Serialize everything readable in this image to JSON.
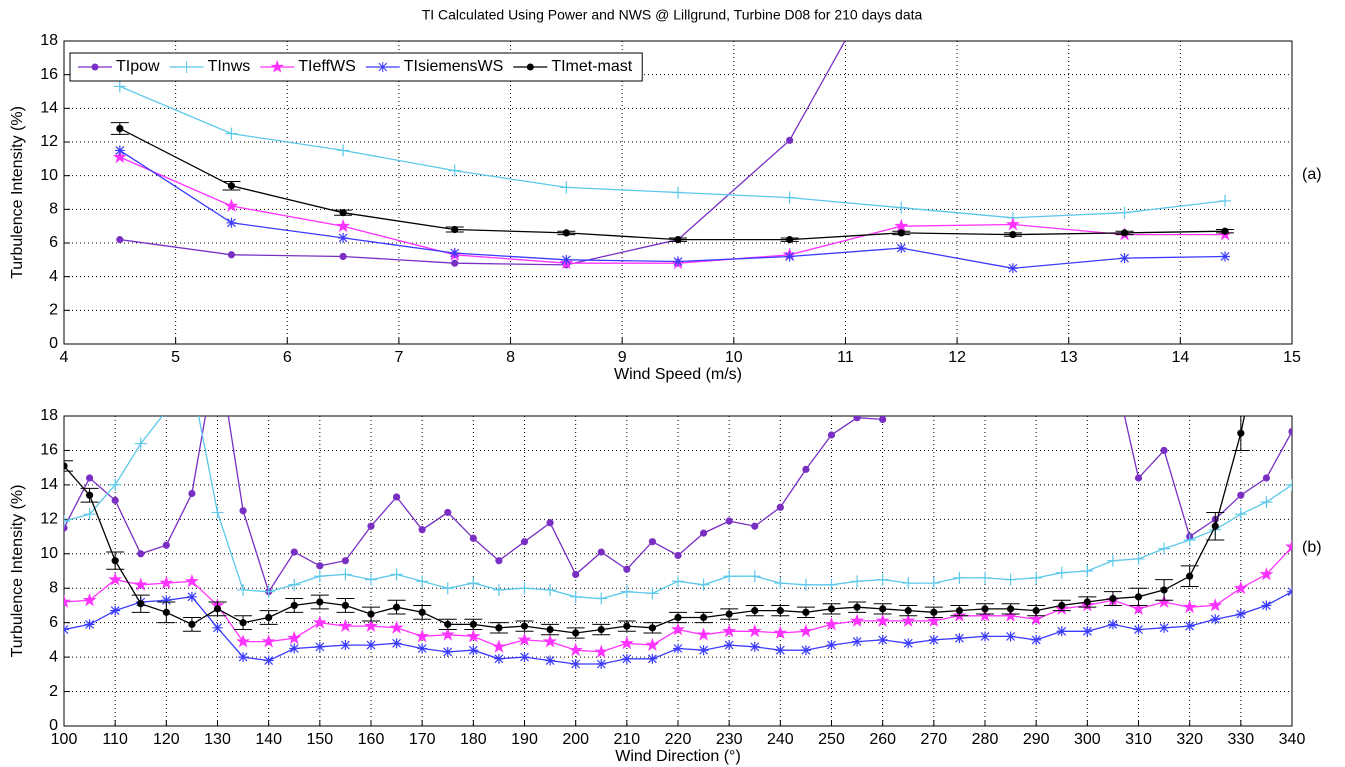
{
  "chart_data": [
    {
      "type": "line",
      "title": "TI Calculated Using Power and NWS @ Lillgrund, Turbine D08 for 210 days data",
      "annotation": "(a)",
      "x_label": "Wind Speed (m/s)",
      "y_label": "Turbulence Intensity (%)",
      "xlim": [
        4,
        15
      ],
      "xticks": [
        4,
        5,
        6,
        7,
        8,
        9,
        10,
        11,
        12,
        13,
        14,
        15
      ],
      "ylim": [
        0,
        18
      ],
      "yticks": [
        0,
        2,
        4,
        6,
        8,
        10,
        12,
        14,
        16,
        18
      ],
      "grid": true,
      "legend": "upper left",
      "x": [
        4.5,
        5.5,
        6.5,
        7.5,
        8.5,
        9.5,
        10.5,
        11.5,
        12.5,
        13.5,
        14.4
      ],
      "series": [
        {
          "name": "TIpow",
          "color": "#7a2fc4",
          "marker": "o",
          "values": [
            6.2,
            5.3,
            5.2,
            4.8,
            4.7,
            6.2,
            12.1,
            24,
            null,
            null,
            null
          ]
        },
        {
          "name": "TInws",
          "color": "#5cc8ea",
          "marker": "+",
          "values": [
            15.3,
            12.5,
            11.5,
            10.3,
            9.3,
            9.0,
            8.7,
            8.1,
            7.5,
            7.8,
            8.5
          ]
        },
        {
          "name": "TIeffWS",
          "color": "#ff33ff",
          "marker": "p",
          "values": [
            11.1,
            8.2,
            7.0,
            5.3,
            4.8,
            4.8,
            5.3,
            7.0,
            7.1,
            6.5,
            6.5
          ]
        },
        {
          "name": "TIsiemensWS",
          "color": "#3b3bff",
          "marker": "*",
          "values": [
            11.5,
            7.2,
            6.3,
            5.4,
            5.0,
            4.9,
            5.2,
            5.7,
            4.5,
            5.1,
            5.2
          ]
        },
        {
          "name": "TImet-mast",
          "color": "#000000",
          "marker": "o",
          "values": [
            12.8,
            9.4,
            7.8,
            6.8,
            6.6,
            6.2,
            6.2,
            6.6,
            6.5,
            6.6,
            6.7
          ],
          "errors": [
            0.35,
            0.25,
            0.15,
            0.15,
            0.1,
            0.1,
            0.1,
            0.1,
            0.1,
            0.1,
            0.1
          ]
        }
      ]
    },
    {
      "type": "line",
      "annotation": "(b)",
      "x_label": "Wind Direction (°)",
      "y_label": "Turbulence Intensity (%)",
      "xlim": [
        100,
        340
      ],
      "xticks": [
        100,
        110,
        120,
        130,
        140,
        150,
        160,
        170,
        180,
        190,
        200,
        210,
        220,
        230,
        240,
        250,
        260,
        270,
        280,
        290,
        300,
        310,
        320,
        330,
        340
      ],
      "ylim": [
        0,
        18
      ],
      "yticks": [
        0,
        2,
        4,
        6,
        8,
        10,
        12,
        14,
        16,
        18
      ],
      "grid": true,
      "x": [
        100,
        105,
        110,
        115,
        120,
        125,
        130,
        135,
        140,
        145,
        150,
        155,
        160,
        165,
        170,
        175,
        180,
        185,
        190,
        195,
        200,
        205,
        210,
        215,
        220,
        225,
        230,
        235,
        240,
        245,
        250,
        255,
        260,
        265,
        270,
        275,
        280,
        285,
        290,
        295,
        300,
        305,
        310,
        315,
        320,
        325,
        330,
        335,
        340
      ],
      "series": [
        {
          "name": "TIpow",
          "color": "#7a2fc4",
          "marker": "o",
          "values": [
            11.5,
            14.4,
            13.1,
            10.0,
            10.5,
            13.5,
            22,
            12.5,
            7.8,
            10.1,
            9.3,
            9.6,
            11.6,
            13.3,
            11.4,
            12.4,
            10.9,
            9.6,
            10.7,
            11.8,
            8.8,
            10.1,
            9.1,
            10.7,
            9.9,
            11.2,
            11.9,
            11.6,
            12.7,
            14.9,
            16.9,
            17.9,
            17.8,
            null,
            null,
            null,
            null,
            null,
            null,
            null,
            null,
            21,
            14.4,
            16.0,
            11.0,
            12.0,
            13.4,
            14.4,
            17.1
          ]
        },
        {
          "name": "TInws",
          "color": "#5cc8ea",
          "marker": "+",
          "values": [
            11.9,
            12.3,
            14.0,
            16.4,
            18.3,
            20,
            12.4,
            7.9,
            7.8,
            8.2,
            8.7,
            8.8,
            8.5,
            8.8,
            8.4,
            8.0,
            8.3,
            7.9,
            8.0,
            7.9,
            7.5,
            7.4,
            7.8,
            7.7,
            8.4,
            8.2,
            8.7,
            8.7,
            8.3,
            8.2,
            8.2,
            8.4,
            8.5,
            8.3,
            8.3,
            8.6,
            8.6,
            8.5,
            8.6,
            8.9,
            9.0,
            9.6,
            9.7,
            10.3,
            10.8,
            11.4,
            12.3,
            13.0,
            14.0
          ]
        },
        {
          "name": "TIeffWS",
          "color": "#ff33ff",
          "marker": "p",
          "values": [
            7.2,
            7.3,
            8.5,
            8.2,
            8.3,
            8.4,
            7.0,
            4.9,
            4.9,
            5.1,
            6.0,
            5.8,
            5.8,
            5.7,
            5.2,
            5.3,
            5.2,
            4.6,
            5.0,
            4.9,
            4.4,
            4.3,
            4.8,
            4.7,
            5.6,
            5.3,
            5.5,
            5.5,
            5.4,
            5.5,
            5.9,
            6.1,
            6.1,
            6.1,
            6.1,
            6.4,
            6.4,
            6.4,
            6.2,
            6.8,
            7.0,
            7.3,
            6.8,
            7.2,
            6.9,
            7.0,
            8.0,
            8.8,
            10.4
          ]
        },
        {
          "name": "TIsiemensWS",
          "color": "#3b3bff",
          "marker": "*",
          "values": [
            5.6,
            5.9,
            6.7,
            7.2,
            7.3,
            7.5,
            5.7,
            4.0,
            3.8,
            4.5,
            4.6,
            4.7,
            4.7,
            4.8,
            4.5,
            4.3,
            4.4,
            3.9,
            4.0,
            3.8,
            3.6,
            3.6,
            3.9,
            3.9,
            4.5,
            4.4,
            4.7,
            4.6,
            4.4,
            4.4,
            4.7,
            4.9,
            5.0,
            4.8,
            5.0,
            5.1,
            5.2,
            5.2,
            5.0,
            5.5,
            5.5,
            5.9,
            5.6,
            5.7,
            5.8,
            6.2,
            6.5,
            7.0,
            7.8
          ]
        },
        {
          "name": "TImet-mast",
          "color": "#000000",
          "marker": "o",
          "values": [
            15.1,
            13.4,
            9.6,
            7.1,
            6.6,
            5.9,
            6.8,
            6.0,
            6.3,
            7.0,
            7.2,
            7.0,
            6.5,
            6.9,
            6.6,
            5.9,
            5.9,
            5.7,
            5.8,
            5.6,
            5.4,
            5.6,
            5.8,
            5.7,
            6.3,
            6.3,
            6.5,
            6.7,
            6.7,
            6.6,
            6.8,
            6.9,
            6.8,
            6.7,
            6.6,
            6.7,
            6.8,
            6.8,
            6.7,
            7.0,
            7.2,
            7.4,
            7.5,
            7.9,
            8.7,
            11.6,
            17.0,
            24,
            null
          ],
          "errors": [
            0.3,
            0.4,
            0.5,
            0.5,
            0.6,
            0.4,
            0.4,
            0.4,
            0.4,
            0.4,
            0.4,
            0.4,
            0.4,
            0.4,
            0.4,
            0.3,
            0.3,
            0.3,
            0.3,
            0.3,
            0.3,
            0.3,
            0.3,
            0.3,
            0.3,
            0.3,
            0.3,
            0.3,
            0.3,
            0.3,
            0.3,
            0.3,
            0.3,
            0.3,
            0.3,
            0.3,
            0.3,
            0.3,
            0.3,
            0.3,
            0.3,
            0.4,
            0.5,
            0.6,
            0.6,
            0.8,
            1.0,
            null,
            null
          ]
        }
      ]
    }
  ]
}
